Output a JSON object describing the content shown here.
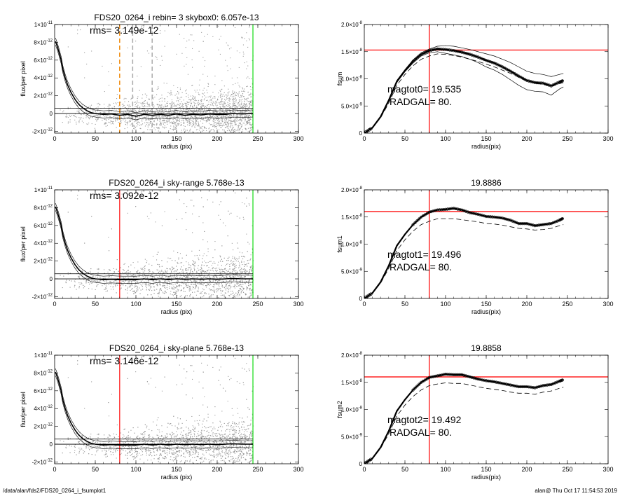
{
  "footer": {
    "path": "/data/alan/fds2/FDS20_0264_i_fsumplot1",
    "stamp": "alan@  Thu Oct 17 11:54:53 2019"
  },
  "colors": {
    "scatter": "#9a9a9a",
    "red": "#ff2020",
    "green": "#22dd22",
    "orange": "#f08c10"
  },
  "chart_data": [
    {
      "type": "scatter",
      "title": "FDS20_0264_i rebin= 3    skybox0:  6.057e-13",
      "annotation": "rms= 3.149e-12",
      "xlabel": "radius (pix)",
      "ylabel": "flux/per pixel",
      "xlim": [
        0,
        300
      ],
      "ylim": [
        -2.2e-12,
        1e-11
      ],
      "xticks": [
        "0",
        "50",
        "100",
        "150",
        "200",
        "250",
        "300"
      ],
      "yticks": [
        {
          "v": 1e-11,
          "m": "1×10",
          "e": "-11"
        },
        {
          "v": 8e-12,
          "m": "8×10",
          "e": "-12"
        },
        {
          "v": 6e-12,
          "m": "6×10",
          "e": "-12"
        },
        {
          "v": 4e-12,
          "m": "4×10",
          "e": "-12"
        },
        {
          "v": 2e-12,
          "m": "2×10",
          "e": "-12"
        },
        {
          "v": 0,
          "m": "0",
          "e": ""
        },
        {
          "v": -2e-12,
          "m": "-2×10",
          "e": "-12"
        }
      ],
      "vlines": [
        {
          "x": 80,
          "color": "#f08c10",
          "dash": true
        },
        {
          "x": 96,
          "color": "#aaaaaa",
          "dash": true
        },
        {
          "x": 120,
          "color": "#aaaaaa",
          "dash": true
        },
        {
          "x": 244,
          "color": "#22dd22",
          "dash": false
        }
      ],
      "hlines": [
        6.057e-13,
        0
      ],
      "profile": [
        [
          1,
          8.1e-12
        ],
        [
          3,
          7.6e-12
        ],
        [
          5,
          7e-12
        ],
        [
          8,
          6e-12
        ],
        [
          10,
          5e-12
        ],
        [
          13,
          4e-12
        ],
        [
          16,
          3.2e-12
        ],
        [
          20,
          2.4e-12
        ],
        [
          25,
          1.6e-12
        ],
        [
          30,
          1e-12
        ],
        [
          35,
          6e-13
        ],
        [
          40,
          3e-13
        ],
        [
          45,
          1e-13
        ],
        [
          50,
          0
        ],
        [
          60,
          -1e-13
        ],
        [
          70,
          -5e-14
        ],
        [
          80,
          -2e-13
        ],
        [
          90,
          -1e-13
        ],
        [
          100,
          -3e-13
        ],
        [
          110,
          -1e-13
        ],
        [
          120,
          -2e-13
        ],
        [
          130,
          -1e-13
        ],
        [
          140,
          -2e-13
        ],
        [
          150,
          -5e-14
        ],
        [
          160,
          -2e-13
        ],
        [
          170,
          -1e-13
        ],
        [
          180,
          -1.5e-13
        ],
        [
          190,
          -5e-14
        ],
        [
          200,
          -1e-13
        ],
        [
          210,
          -1e-13
        ],
        [
          220,
          0
        ],
        [
          230,
          -5e-14
        ],
        [
          244,
          0
        ]
      ]
    },
    {
      "type": "line",
      "title": "",
      "xlabel": "radius(pix)",
      "ylabel": "fsum",
      "xlim": [
        0,
        300
      ],
      "ylim": [
        0,
        2e-08
      ],
      "xticks": [
        "0",
        "50",
        "100",
        "150",
        "200",
        "250",
        "300"
      ],
      "yticks": [
        {
          "v": 2e-08,
          "m": "2.0×10",
          "e": "-8"
        },
        {
          "v": 1.5e-08,
          "m": "1.5×10",
          "e": "-8"
        },
        {
          "v": 1e-08,
          "m": "1.0×10",
          "e": "-8"
        },
        {
          "v": 5e-09,
          "m": "5.0×10",
          "e": "-9"
        },
        {
          "v": 0,
          "m": "0",
          "e": ""
        }
      ],
      "vline": {
        "x": 80,
        "color": "#ff2020"
      },
      "hline": {
        "y": 1.53e-08,
        "color": "#ff2020"
      },
      "annotations": [
        "magtot0=  19.535",
        "RADGAL=     80."
      ],
      "x": [
        0,
        10,
        20,
        30,
        40,
        50,
        60,
        70,
        80,
        90,
        100,
        110,
        120,
        130,
        140,
        150,
        160,
        170,
        180,
        190,
        200,
        210,
        220,
        230,
        240,
        245
      ],
      "series": [
        {
          "values": [
            0,
            1e-09,
            3e-09,
            6e-09,
            9.5e-09,
            1.15e-08,
            1.32e-08,
            1.45e-08,
            1.52e-08,
            1.55e-08,
            1.54e-08,
            1.52e-08,
            1.49e-08,
            1.45e-08,
            1.4e-08,
            1.34e-08,
            1.29e-08,
            1.22e-08,
            1.14e-08,
            1.05e-08,
            9.7e-09,
            9.3e-09,
            9.2e-09,
            8.7e-09,
            9.4e-09,
            9.7e-09
          ],
          "style": "thick"
        },
        {
          "values": [
            0,
            1e-09,
            3.1e-09,
            6.2e-09,
            9.7e-09,
            1.17e-08,
            1.35e-08,
            1.48e-08,
            1.55e-08,
            1.6e-08,
            1.61e-08,
            1.6e-08,
            1.57e-08,
            1.54e-08,
            1.5e-08,
            1.46e-08,
            1.42e-08,
            1.36e-08,
            1.3e-08,
            1.22e-08,
            1.14e-08,
            1.1e-08,
            1.08e-08,
            1.04e-08,
            1.08e-08,
            1.1e-08
          ],
          "style": "thin"
        },
        {
          "values": [
            0,
            1e-09,
            2.9e-09,
            5.8e-09,
            9.3e-09,
            1.13e-08,
            1.29e-08,
            1.42e-08,
            1.48e-08,
            1.5e-08,
            1.47e-08,
            1.44e-08,
            1.41e-08,
            1.36e-08,
            1.3e-08,
            1.22e-08,
            1.16e-08,
            1.08e-08,
            9.8e-09,
            8.8e-09,
            8e-09,
            7.7e-09,
            7.6e-09,
            7e-09,
            8.1e-09,
            8.5e-09
          ],
          "style": "thin"
        },
        {
          "values": [
            0,
            1e-09,
            2.8e-09,
            5.5e-09,
            8.8e-09,
            1.08e-08,
            1.24e-08,
            1.36e-08,
            1.42e-08,
            1.46e-08,
            1.45e-08,
            1.43e-08,
            1.4e-08,
            1.36e-08,
            1.32e-08,
            1.27e-08,
            1.22e-08,
            1.16e-08,
            1.1e-08,
            1.03e-08,
            9.6e-09,
            9.2e-09,
            9e-09,
            8.6e-09,
            9.1e-09,
            9.3e-09
          ],
          "style": "dashed"
        }
      ]
    },
    {
      "type": "scatter",
      "title": "FDS20_0264_i sky-range  5.768e-13",
      "annotation": "rms= 3.092e-12",
      "xlabel": "radius (pix)",
      "ylabel": "flux/per pixel",
      "xlim": [
        0,
        300
      ],
      "ylim": [
        -2.2e-12,
        1e-11
      ],
      "xticks": [
        "0",
        "50",
        "100",
        "150",
        "200",
        "250",
        "300"
      ],
      "yticks": [
        {
          "v": 1e-11,
          "m": "1×10",
          "e": "-11"
        },
        {
          "v": 8e-12,
          "m": "8×10",
          "e": "-12"
        },
        {
          "v": 6e-12,
          "m": "6×10",
          "e": "-12"
        },
        {
          "v": 4e-12,
          "m": "4×10",
          "e": "-12"
        },
        {
          "v": 2e-12,
          "m": "2×10",
          "e": "-12"
        },
        {
          "v": 0,
          "m": "0",
          "e": ""
        },
        {
          "v": -2e-12,
          "m": "-2×10",
          "e": "-12"
        }
      ],
      "vlines": [
        {
          "x": 80,
          "color": "#ff2020",
          "dash": false
        },
        {
          "x": 244,
          "color": "#22dd22",
          "dash": false
        }
      ],
      "hlines": [
        5.768e-13,
        0
      ],
      "profile": [
        [
          1,
          8.1e-12
        ],
        [
          3,
          7.6e-12
        ],
        [
          5,
          7e-12
        ],
        [
          8,
          6e-12
        ],
        [
          10,
          5e-12
        ],
        [
          13,
          4e-12
        ],
        [
          16,
          3.2e-12
        ],
        [
          20,
          2.4e-12
        ],
        [
          25,
          1.6e-12
        ],
        [
          30,
          1e-12
        ],
        [
          35,
          6e-13
        ],
        [
          40,
          3e-13
        ],
        [
          45,
          1e-13
        ],
        [
          50,
          0
        ],
        [
          60,
          -1e-13
        ],
        [
          70,
          -5e-14
        ],
        [
          80,
          -1e-13
        ],
        [
          90,
          -1e-13
        ],
        [
          100,
          -1e-13
        ],
        [
          110,
          0
        ],
        [
          120,
          -1e-13
        ],
        [
          130,
          0
        ],
        [
          140,
          -1e-13
        ],
        [
          150,
          0
        ],
        [
          160,
          -5e-14
        ],
        [
          170,
          0
        ],
        [
          180,
          -5e-14
        ],
        [
          190,
          0
        ],
        [
          200,
          -5e-14
        ],
        [
          210,
          0
        ],
        [
          220,
          5e-14
        ],
        [
          230,
          0
        ],
        [
          244,
          0
        ]
      ]
    },
    {
      "type": "line",
      "title": "19.8886",
      "xlabel": "radius(pix)",
      "ylabel": "fsum1",
      "xlim": [
        0,
        300
      ],
      "ylim": [
        0,
        2e-08
      ],
      "xticks": [
        "0",
        "50",
        "100",
        "150",
        "200",
        "250",
        "300"
      ],
      "yticks": [
        {
          "v": 2e-08,
          "m": "2.0×10",
          "e": "-8"
        },
        {
          "v": 1.5e-08,
          "m": "1.5×10",
          "e": "-8"
        },
        {
          "v": 1e-08,
          "m": "1.0×10",
          "e": "-8"
        },
        {
          "v": 5e-09,
          "m": "5.0×10",
          "e": "-9"
        },
        {
          "v": 0,
          "m": "0",
          "e": ""
        }
      ],
      "vline": {
        "x": 80,
        "color": "#ff2020"
      },
      "hline": {
        "y": 1.6e-08,
        "color": "#ff2020"
      },
      "annotations": [
        "magtot1=  19.496",
        "RADGAL=     80."
      ],
      "x": [
        0,
        10,
        20,
        30,
        40,
        50,
        60,
        70,
        80,
        90,
        100,
        110,
        120,
        130,
        140,
        150,
        160,
        170,
        180,
        190,
        200,
        210,
        220,
        230,
        240,
        245
      ],
      "series": [
        {
          "values": [
            0,
            1e-09,
            3e-09,
            6e-09,
            9.7e-09,
            1.18e-08,
            1.36e-08,
            1.5e-08,
            1.59e-08,
            1.63e-08,
            1.64e-08,
            1.66e-08,
            1.63e-08,
            1.58e-08,
            1.55e-08,
            1.51e-08,
            1.5e-08,
            1.48e-08,
            1.44e-08,
            1.38e-08,
            1.38e-08,
            1.34e-08,
            1.36e-08,
            1.38e-08,
            1.44e-08,
            1.48e-08
          ],
          "style": "thick"
        },
        {
          "values": [
            0,
            1e-09,
            2.8e-09,
            5.5e-09,
            8.8e-09,
            1.08e-08,
            1.24e-08,
            1.36e-08,
            1.42e-08,
            1.47e-08,
            1.47e-08,
            1.47e-08,
            1.45e-08,
            1.43e-08,
            1.41e-08,
            1.38e-08,
            1.37e-08,
            1.35e-08,
            1.32e-08,
            1.29e-08,
            1.28e-08,
            1.26e-08,
            1.27e-08,
            1.29e-08,
            1.34e-08,
            1.36e-08
          ],
          "style": "dashed"
        }
      ]
    },
    {
      "type": "scatter",
      "title": "FDS20_0264_i sky-plane  5.768e-13",
      "annotation": "rms= 3.146e-12",
      "xlabel": "radius (pix)",
      "ylabel": "flux/per pixel",
      "xlim": [
        0,
        300
      ],
      "ylim": [
        -2.2e-12,
        1e-11
      ],
      "xticks": [
        "0",
        "50",
        "100",
        "150",
        "200",
        "250",
        "300"
      ],
      "yticks": [
        {
          "v": 1e-11,
          "m": "1×10",
          "e": "-11"
        },
        {
          "v": 8e-12,
          "m": "8×10",
          "e": "-12"
        },
        {
          "v": 6e-12,
          "m": "6×10",
          "e": "-12"
        },
        {
          "v": 4e-12,
          "m": "4×10",
          "e": "-12"
        },
        {
          "v": 2e-12,
          "m": "2×10",
          "e": "-12"
        },
        {
          "v": 0,
          "m": "0",
          "e": ""
        },
        {
          "v": -2e-12,
          "m": "-2×10",
          "e": "-12"
        }
      ],
      "vlines": [
        {
          "x": 80,
          "color": "#ff2020",
          "dash": false
        },
        {
          "x": 244,
          "color": "#22dd22",
          "dash": false
        }
      ],
      "hlines": [
        5.768e-13,
        0
      ],
      "profile": [
        [
          1,
          8.1e-12
        ],
        [
          3,
          7.6e-12
        ],
        [
          5,
          7e-12
        ],
        [
          8,
          6e-12
        ],
        [
          10,
          5e-12
        ],
        [
          13,
          4e-12
        ],
        [
          16,
          3.2e-12
        ],
        [
          20,
          2.4e-12
        ],
        [
          25,
          1.6e-12
        ],
        [
          30,
          1e-12
        ],
        [
          35,
          6e-13
        ],
        [
          40,
          3e-13
        ],
        [
          45,
          1e-13
        ],
        [
          50,
          0
        ],
        [
          60,
          -1e-13
        ],
        [
          70,
          -5e-14
        ],
        [
          80,
          -1e-13
        ],
        [
          90,
          -1e-13
        ],
        [
          100,
          -1e-13
        ],
        [
          110,
          0
        ],
        [
          120,
          -1e-13
        ],
        [
          130,
          0
        ],
        [
          140,
          -1e-13
        ],
        [
          150,
          0
        ],
        [
          160,
          -5e-14
        ],
        [
          170,
          0
        ],
        [
          180,
          -5e-14
        ],
        [
          190,
          0
        ],
        [
          200,
          -5e-14
        ],
        [
          210,
          0
        ],
        [
          220,
          5e-14
        ],
        [
          230,
          0
        ],
        [
          244,
          0
        ]
      ]
    },
    {
      "type": "line",
      "title": "19.8858",
      "xlabel": "radius(pix)",
      "ylabel": "fsum2",
      "xlim": [
        0,
        300
      ],
      "ylim": [
        0,
        2e-08
      ],
      "xticks": [
        "0",
        "50",
        "100",
        "150",
        "200",
        "250",
        "300"
      ],
      "yticks": [
        {
          "v": 2e-08,
          "m": "2.0×10",
          "e": "-8"
        },
        {
          "v": 1.5e-08,
          "m": "1.5×10",
          "e": "-8"
        },
        {
          "v": 1e-08,
          "m": "1.0×10",
          "e": "-8"
        },
        {
          "v": 5e-09,
          "m": "5.0×10",
          "e": "-9"
        },
        {
          "v": 0,
          "m": "0",
          "e": ""
        }
      ],
      "vline": {
        "x": 80,
        "color": "#ff2020"
      },
      "hline": {
        "y": 1.6e-08,
        "color": "#ff2020"
      },
      "annotations": [
        "magtot2=  19.492",
        "RADGAL=     80."
      ],
      "x": [
        0,
        10,
        20,
        30,
        40,
        50,
        60,
        70,
        80,
        90,
        100,
        110,
        120,
        130,
        140,
        150,
        160,
        170,
        180,
        190,
        200,
        210,
        220,
        230,
        240,
        245
      ],
      "series": [
        {
          "values": [
            0,
            1e-09,
            3e-09,
            6e-09,
            9.7e-09,
            1.18e-08,
            1.36e-08,
            1.5e-08,
            1.59e-08,
            1.62e-08,
            1.65e-08,
            1.64e-08,
            1.64e-08,
            1.6e-08,
            1.56e-08,
            1.53e-08,
            1.51e-08,
            1.48e-08,
            1.45e-08,
            1.42e-08,
            1.42e-08,
            1.4e-08,
            1.44e-08,
            1.46e-08,
            1.52e-08,
            1.55e-08
          ],
          "style": "thick"
        },
        {
          "values": [
            0,
            1e-09,
            2.8e-09,
            5.5e-09,
            8.8e-09,
            1.08e-08,
            1.24e-08,
            1.36e-08,
            1.44e-08,
            1.47e-08,
            1.49e-08,
            1.48e-08,
            1.48e-08,
            1.45e-08,
            1.42e-08,
            1.39e-08,
            1.37e-08,
            1.35e-08,
            1.32e-08,
            1.3e-08,
            1.3e-08,
            1.28e-08,
            1.32e-08,
            1.34e-08,
            1.39e-08,
            1.41e-08
          ],
          "style": "dashed"
        }
      ]
    }
  ]
}
